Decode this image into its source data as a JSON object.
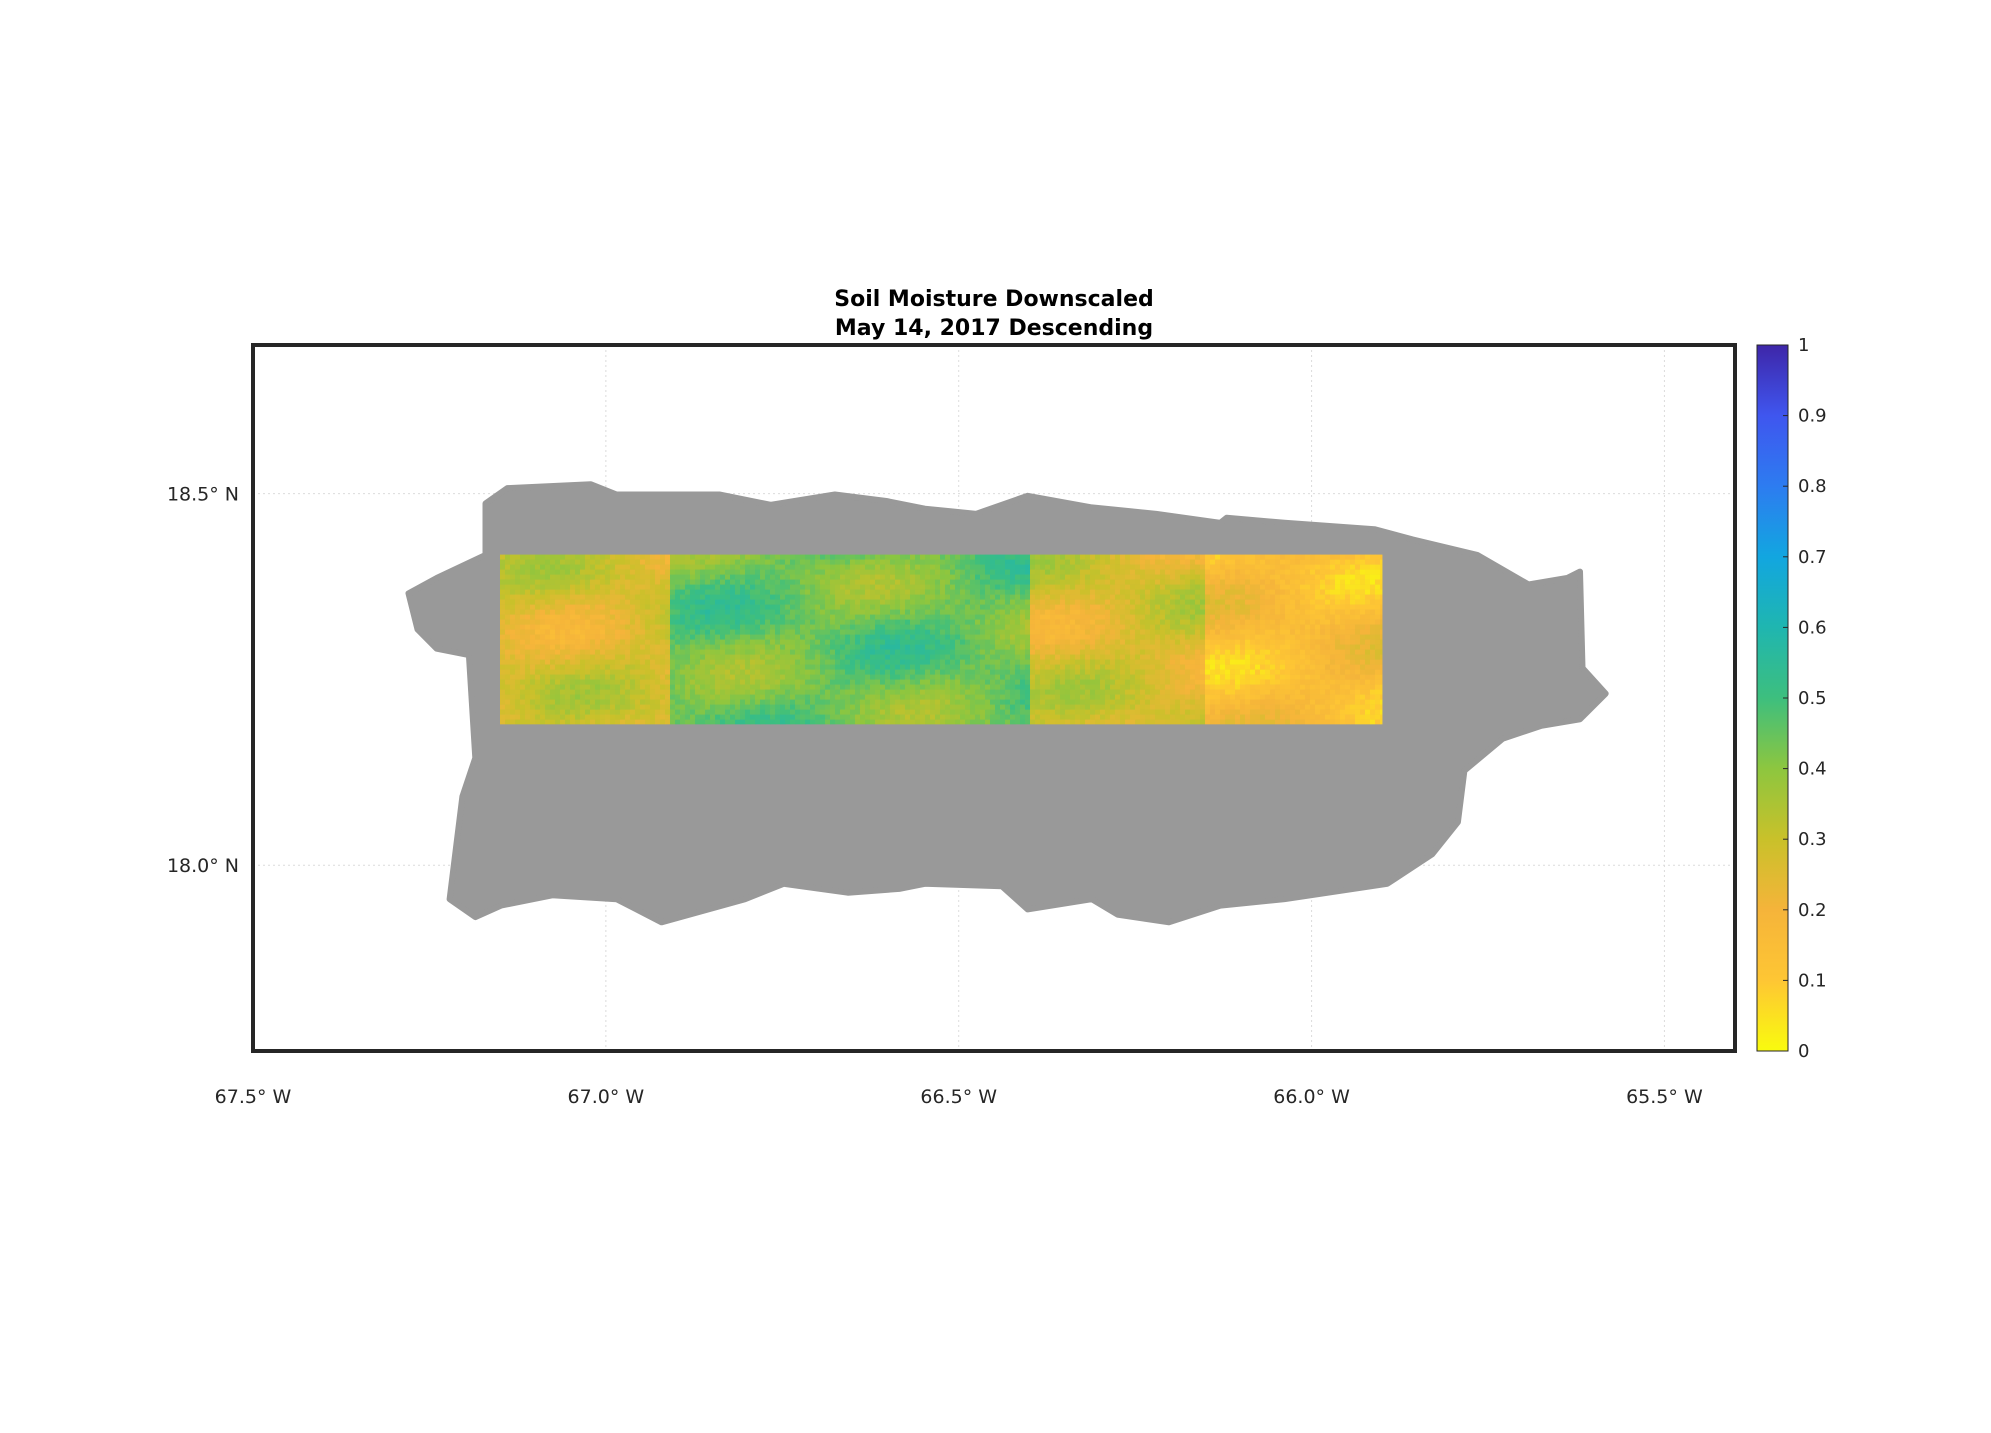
{
  "chart_data": {
    "type": "heatmap",
    "title": [
      "Soil Moisture Downscaled",
      "May 14, 2017 Descending"
    ],
    "xlabel": "",
    "ylabel": "",
    "xlim": [
      -67.5,
      -65.4
    ],
    "ylim": [
      17.75,
      18.7
    ],
    "x_ticks": [
      -67.5,
      -67.0,
      -66.5,
      -66.0,
      -65.5
    ],
    "x_tick_labels": [
      "67.5° W",
      "67.0° W",
      "66.5° W",
      "66.0° W",
      "65.5° W"
    ],
    "y_ticks": [
      18.0,
      18.5
    ],
    "y_tick_labels": [
      "18.0° N",
      "18.5° N"
    ],
    "grid": true,
    "land_color": "#999999",
    "data_extent": {
      "lon": [
        -67.15,
        -65.9
      ],
      "lat": [
        18.19,
        18.418
      ]
    },
    "panels": [
      {
        "lon": [
          -67.15,
          -66.91
        ],
        "mean_value": 0.27
      },
      {
        "lon": [
          -66.91,
          -66.4
        ],
        "mean_value": 0.44
      },
      {
        "lon": [
          -66.4,
          -66.15
        ],
        "mean_value": 0.27
      },
      {
        "lon": [
          -66.15,
          -65.9
        ],
        "mean_value": 0.15
      }
    ],
    "colorbar": {
      "range": [
        0,
        1
      ],
      "ticks": [
        "0",
        "0.1",
        "0.2",
        "0.3",
        "0.4",
        "0.5",
        "0.6",
        "0.7",
        "0.8",
        "0.9",
        "1"
      ],
      "colormap": [
        "#f9fb0e",
        "#fec634",
        "#f5b43a",
        "#c9c12a",
        "#8dc63f",
        "#3dbf7e",
        "#1fb6b0",
        "#12a6e0",
        "#2d7cf0",
        "#3f56ef",
        "#3e26a8"
      ],
      "placement": "right"
    }
  }
}
